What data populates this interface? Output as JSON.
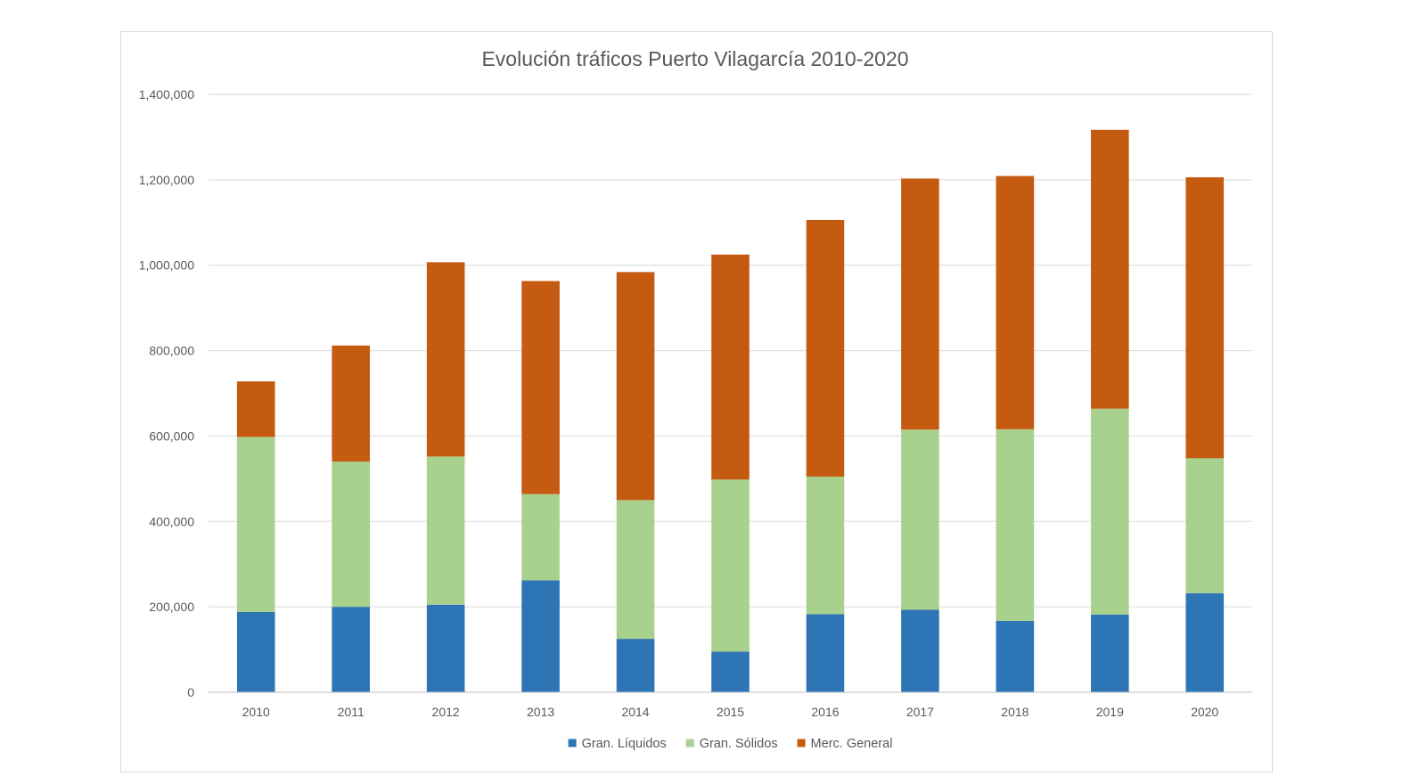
{
  "chart_data": {
    "type": "bar",
    "stacked": true,
    "title": "Evolución tráficos Puerto Vilagarcía 2010-2020",
    "xlabel": "",
    "ylabel": "",
    "categories": [
      "2010",
      "2011",
      "2012",
      "2013",
      "2014",
      "2015",
      "2016",
      "2017",
      "2018",
      "2019",
      "2020"
    ],
    "ylim": [
      0,
      1400000
    ],
    "yticks": [
      0,
      200000,
      400000,
      600000,
      800000,
      1000000,
      1200000,
      1400000
    ],
    "ytick_labels": [
      "0",
      "200,000",
      "400,000",
      "600,000",
      "800,000",
      "1,000,000",
      "1,200,000",
      "1,400,000"
    ],
    "grid": true,
    "legend_position": "bottom",
    "series": [
      {
        "name": "Gran. Líquidos",
        "color": "#2e75b6",
        "values": [
          188000,
          200000,
          205000,
          262000,
          125000,
          95000,
          183000,
          193000,
          167000,
          182000,
          232000
        ]
      },
      {
        "name": "Gran. Sólidos",
        "color": "#a9d18e",
        "values": [
          410000,
          340000,
          347000,
          202000,
          325000,
          403000,
          322000,
          422000,
          449000,
          482000,
          316000
        ]
      },
      {
        "name": "Merc. General",
        "color": "#c55a11",
        "values": [
          130000,
          272000,
          455000,
          499000,
          534000,
          527000,
          601000,
          588000,
          593000,
          653000,
          658000
        ]
      }
    ]
  }
}
